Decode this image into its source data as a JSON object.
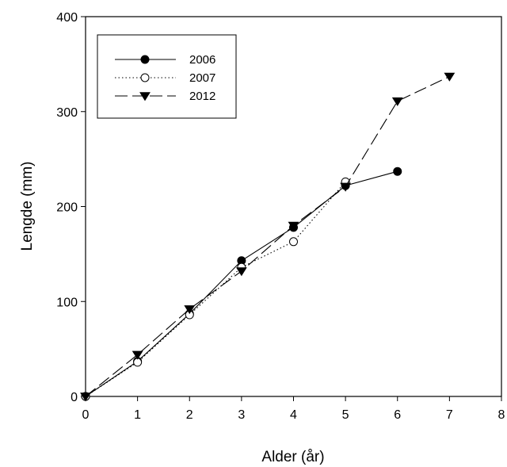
{
  "chart_data": {
    "type": "line",
    "title": "",
    "xlabel": "Alder (år)",
    "ylabel": "Lengde (mm)",
    "xlim": [
      0,
      8
    ],
    "ylim": [
      0,
      400
    ],
    "xticks": [
      "0",
      "1",
      "2",
      "3",
      "4",
      "5",
      "6",
      "7",
      "8"
    ],
    "yticks": [
      "0",
      "100",
      "200",
      "300",
      "400"
    ],
    "grid": false,
    "legend_position": "top-left",
    "series": [
      {
        "name": "2006",
        "style": "solid",
        "marker": "filled-circle",
        "x": [
          0,
          1,
          2,
          3,
          4,
          5,
          6
        ],
        "y": [
          0,
          37,
          87,
          143,
          178,
          222,
          237
        ]
      },
      {
        "name": "2007",
        "style": "dotted",
        "marker": "open-circle",
        "x": [
          0,
          1,
          2,
          3,
          4,
          5
        ],
        "y": [
          0,
          36,
          86,
          136,
          163,
          226
        ]
      },
      {
        "name": "2012",
        "style": "dashed",
        "marker": "filled-triangle-down",
        "x": [
          0,
          1,
          2,
          3,
          4,
          5,
          6,
          7
        ],
        "y": [
          0,
          44,
          92,
          132,
          180,
          221,
          311,
          337
        ]
      }
    ]
  }
}
